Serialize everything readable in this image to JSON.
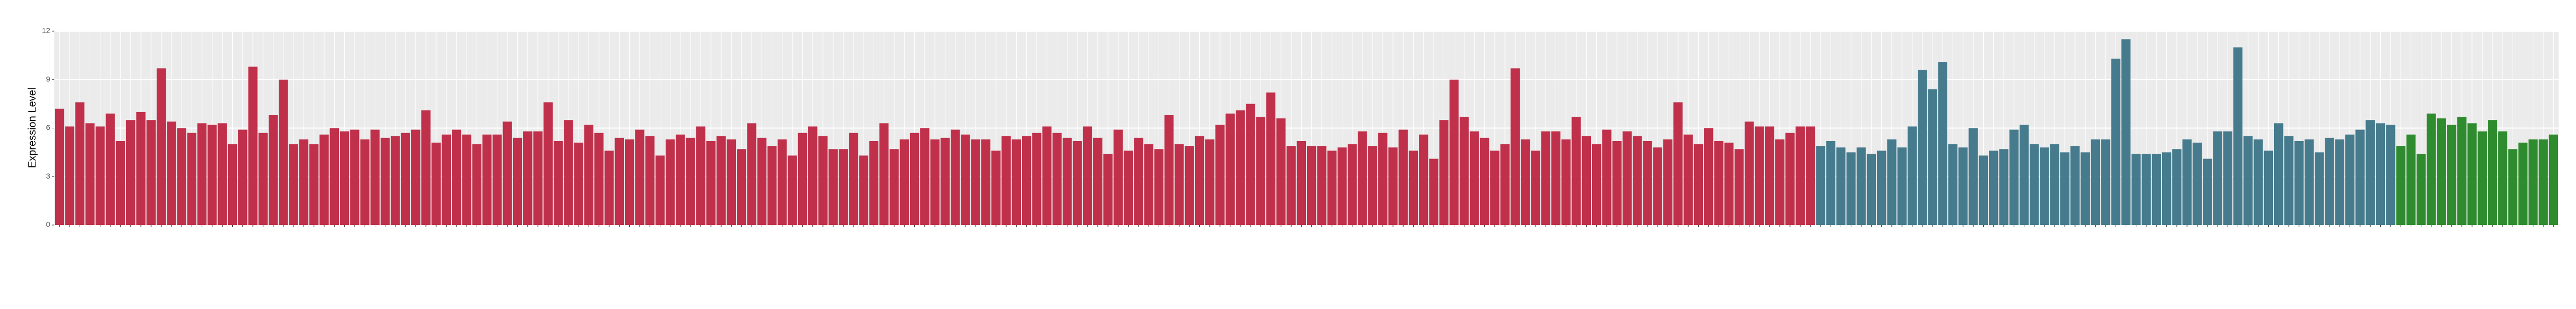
{
  "chart_data": {
    "type": "bar",
    "y_label": "Expression Level",
    "ylim": [
      0,
      12
    ],
    "yticks": [
      0,
      3,
      6,
      9,
      12
    ],
    "grid": true,
    "series": [
      {
        "color": "#c0304a",
        "values": [
          7.2,
          6.1,
          7.6,
          6.3,
          6.1,
          6.9,
          5.2,
          6.5,
          7.0,
          6.5,
          9.7,
          6.4,
          6.0,
          5.7,
          6.3,
          6.2,
          6.3,
          5.0,
          5.9,
          9.8,
          5.7,
          6.8,
          9.0,
          5.0,
          5.3,
          5.0,
          5.6,
          6.0,
          5.8,
          5.9,
          5.3,
          5.9,
          5.4,
          5.5,
          5.7,
          5.9,
          7.1,
          5.1,
          5.6,
          5.9,
          5.6,
          5.0,
          5.6,
          5.6,
          6.4,
          5.4,
          5.8,
          5.8,
          7.6,
          5.2,
          6.5,
          5.1,
          6.2,
          5.7,
          4.6,
          5.4,
          5.3,
          5.9,
          5.5,
          4.3,
          5.3,
          5.6,
          5.4,
          6.1,
          5.2,
          5.5,
          5.3,
          4.7,
          6.3,
          5.4,
          4.9,
          5.3,
          4.3,
          5.7,
          6.1,
          5.5,
          4.7,
          4.7,
          5.7,
          4.3,
          5.2,
          6.3,
          4.7,
          5.3,
          5.7,
          6.0,
          5.3,
          5.4,
          5.9,
          5.6,
          5.3,
          5.3,
          4.6,
          5.5,
          5.3,
          5.5,
          5.7,
          6.1,
          5.7,
          5.4,
          5.2,
          6.1,
          5.4,
          4.4,
          5.9,
          4.6,
          5.4,
          5.0,
          4.7,
          6.8,
          5.0,
          4.9,
          5.5,
          5.3,
          6.2,
          6.9,
          7.1,
          7.5,
          6.7,
          8.2,
          6.6,
          4.9,
          5.2,
          4.9,
          4.9,
          4.6,
          4.8,
          5.0,
          5.8,
          4.9,
          5.7,
          4.8,
          5.9,
          4.6,
          5.6,
          4.1,
          6.5,
          9.0,
          6.7,
          5.8,
          5.4,
          4.6,
          5.0,
          9.7,
          5.3,
          4.6,
          5.8,
          5.8,
          5.3,
          6.7,
          5.5,
          5.0,
          5.9,
          5.2,
          5.8,
          5.5,
          5.2,
          4.8,
          5.3,
          7.6,
          5.6,
          5.0,
          6.0,
          5.2,
          5.1,
          4.7,
          6.4,
          6.1,
          6.1,
          5.3,
          5.7,
          6.1,
          6.1
        ]
      },
      {
        "color": "#457b8c",
        "values": [
          4.9,
          5.2,
          4.8,
          4.5,
          4.8,
          4.4,
          4.6,
          5.3,
          4.8,
          6.1,
          9.6,
          8.4,
          10.1,
          5.0,
          4.8,
          6.0,
          4.3,
          4.6,
          4.7,
          5.9,
          6.2,
          5.0,
          4.8,
          5.0,
          4.5,
          4.9,
          4.5,
          5.3,
          5.3,
          10.3,
          11.5,
          4.4,
          4.4,
          4.4,
          4.5,
          4.7,
          5.3,
          5.1,
          4.1,
          5.8,
          5.8,
          11.0,
          5.5,
          5.3,
          4.6,
          6.3,
          5.5,
          5.2,
          5.3,
          4.5,
          5.4,
          5.3,
          5.6,
          5.9,
          6.5,
          6.3,
          6.2
        ]
      },
      {
        "color": "#2e8b2e",
        "values": [
          4.9,
          5.6,
          4.4,
          6.9,
          6.6,
          6.2,
          6.7,
          6.3,
          5.8,
          6.5,
          5.8,
          4.7,
          5.1,
          5.3,
          5.3,
          5.6
        ]
      }
    ]
  }
}
